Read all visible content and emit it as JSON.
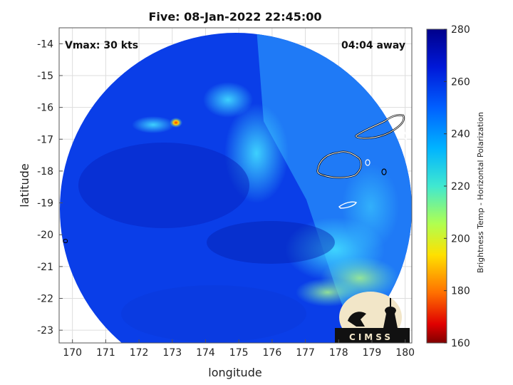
{
  "chart_data": {
    "type": "heatmap",
    "title": "Five: 08-Jan-2022 22:45:00",
    "xlabel": "longitude",
    "ylabel": "latitude",
    "xlim": [
      169.6,
      180.2
    ],
    "ylim": [
      -23.4,
      -13.5
    ],
    "x_ticks": [
      "170",
      "171",
      "172",
      "173",
      "174",
      "175",
      "176",
      "177",
      "178",
      "179",
      "180"
    ],
    "y_ticks": [
      "-14",
      "-15",
      "-16",
      "-17",
      "-18",
      "-19",
      "-20",
      "-21",
      "-22",
      "-23"
    ],
    "grid": true,
    "annotations": {
      "vmax": "Vmax: 30 kts",
      "away": "04:04 away"
    },
    "colorbar": {
      "label": "Brightness Temp - Horizontal Polarization",
      "range": [
        160,
        280
      ],
      "ticks": [
        "280",
        "260",
        "240",
        "220",
        "200",
        "180",
        "160"
      ],
      "colors": [
        "#00008b",
        "#0030ff",
        "#00a0ff",
        "#20e0e0",
        "#a0ff60",
        "#ffe000",
        "#ff7000",
        "#e00000",
        "#800000"
      ]
    },
    "swath": {
      "center_lon": 174.9,
      "center_lat": -18.6,
      "radius_deg": 5.35
    },
    "logo": "CIMSS"
  }
}
